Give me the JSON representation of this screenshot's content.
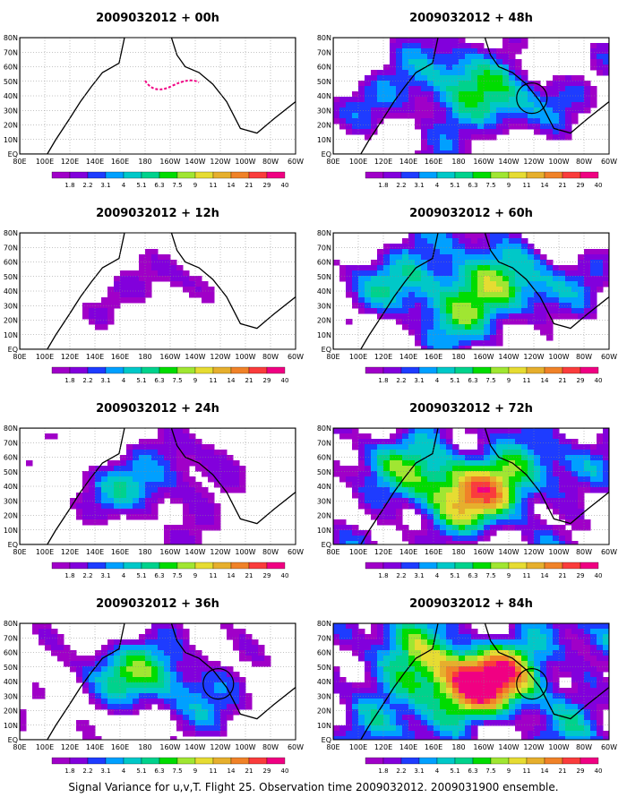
{
  "panels": [
    {
      "title": "2009032012 + 00h",
      "level": 0.15,
      "circle": false,
      "track": true
    },
    {
      "title": "2009032012 + 48h",
      "level": 0.55,
      "circle": true,
      "track": false
    },
    {
      "title": "2009032012 + 12h",
      "level": 0.25,
      "circle": false,
      "track": false
    },
    {
      "title": "2009032012 + 60h",
      "level": 0.65,
      "circle": false,
      "track": false
    },
    {
      "title": "2009032012 + 24h",
      "level": 0.4,
      "circle": false,
      "track": false
    },
    {
      "title": "2009032012 + 72h",
      "level": 0.75,
      "circle": false,
      "track": false
    },
    {
      "title": "2009032012 + 36h",
      "level": 0.5,
      "circle": true,
      "track": false
    },
    {
      "title": "2009032012 + 84h",
      "level": 0.88,
      "circle": true,
      "track": false
    }
  ],
  "lat_labels": [
    "EQ",
    "10N",
    "20N",
    "30N",
    "40N",
    "50N",
    "60N",
    "70N",
    "80N"
  ],
  "lon_labels": [
    "80E",
    "100E",
    "120E",
    "140E",
    "160E",
    "180",
    "160W",
    "140W",
    "120W",
    "100W",
    "80W",
    "60W"
  ],
  "legend": {
    "labels": [
      "1.8",
      "2.2",
      "3.1",
      "4",
      "5.1",
      "6.3",
      "7.5",
      "9",
      "11",
      "14",
      "21",
      "29",
      "40"
    ],
    "colors": [
      "#a000c8",
      "#8200dc",
      "#1e3cff",
      "#00a0ff",
      "#00c8c8",
      "#00d28c",
      "#00dc00",
      "#a0e632",
      "#e6dc32",
      "#e6af2d",
      "#f08228",
      "#fa3c3c",
      "#f00082"
    ]
  },
  "footer": "Signal Variance for u,v,T. Flight 25. Observation time 2009032012. 2009031900 ensemble."
}
